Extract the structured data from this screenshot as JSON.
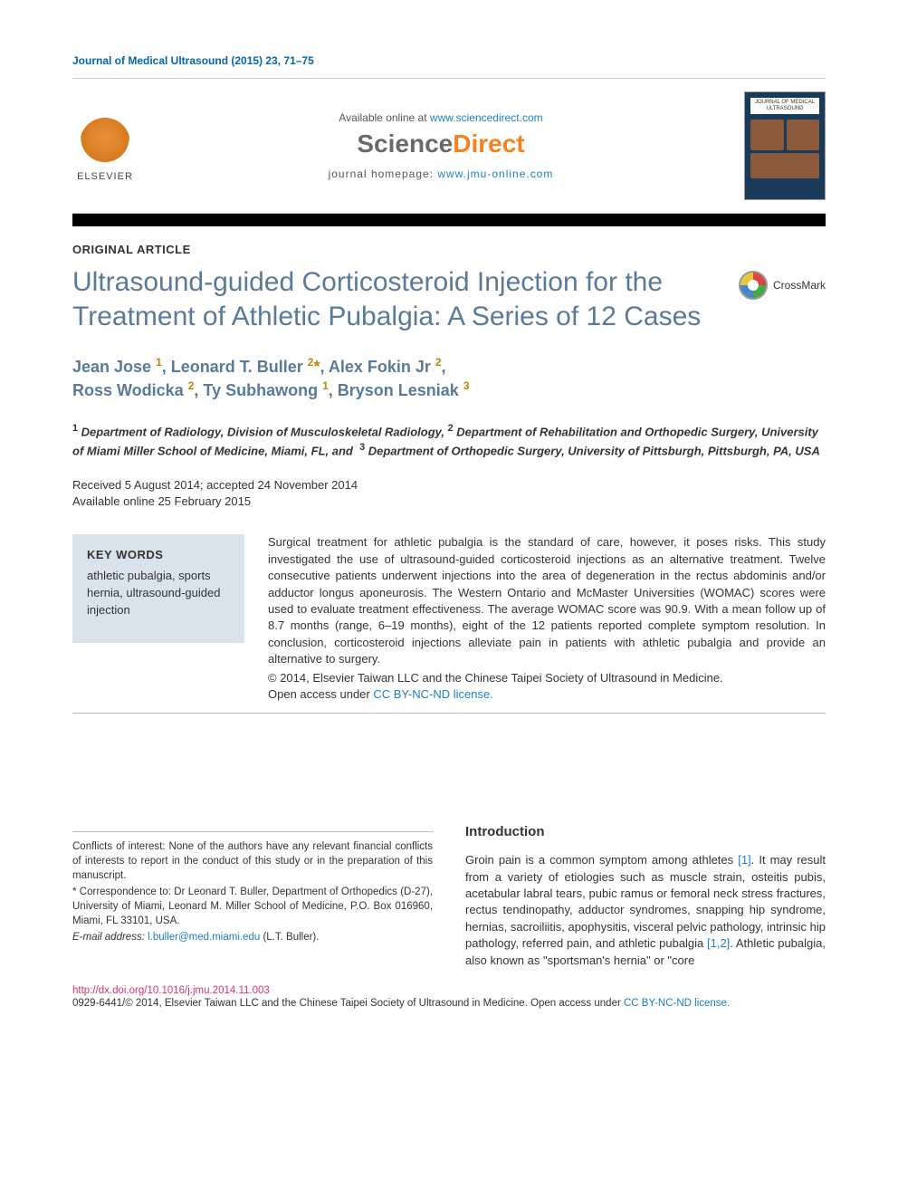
{
  "header": {
    "citation": "Journal of Medical Ultrasound (2015) 23, 71–75",
    "available_prefix": "Available online at ",
    "available_url": "www.sciencedirect.com",
    "sd_science": "Science",
    "sd_direct": "Direct",
    "homepage_prefix": "journal homepage: ",
    "homepage_url": "www.jmu-online.com",
    "elsevier_label": "ELSEVIER",
    "cover_title": "JOURNAL OF MEDICAL ULTRASOUND"
  },
  "article_type": "ORIGINAL ARTICLE",
  "title": "Ultrasound-guided Corticosteroid Injection for the Treatment of Athletic Pubalgia: A Series of 12 Cases",
  "crossmark": "CrossMark",
  "authors_html": "Jean Jose <sup>1</sup>, Leonard T. Buller <sup>2</sup><span class='corr'>*</span>, Alex Fokin Jr <sup>2</sup>,<br>Ross Wodicka <sup>2</sup>, Ty Subhawong <sup>1</sup>, Bryson Lesniak <sup>3</sup>",
  "affiliations": "<sup>1</sup> Department of Radiology, Division of Musculoskeletal Radiology, <sup>2</sup> Department of Rehabilitation and Orthopedic Surgery, University of Miami Miller School of Medicine, Miami, FL, and &nbsp;<sup>3</sup> Department of Orthopedic Surgery, University of Pittsburgh, Pittsburgh, PA, USA",
  "dates": {
    "received_accepted": "Received 5 August 2014; accepted 24 November 2014",
    "online": "Available online 25 February 2015"
  },
  "keywords": {
    "heading": "KEY WORDS",
    "body": "athletic pubalgia, sports hernia, ultrasound-guided injection"
  },
  "abstract": {
    "body": "Surgical treatment for athletic pubalgia is the standard of care, however, it poses risks. This study investigated the use of ultrasound-guided corticosteroid injections as an alternative treatment. Twelve consecutive patients underwent injections into the area of degeneration in the rectus abdominis and/or adductor longus aponeurosis. The Western Ontario and McMaster Universities (WOMAC) scores were used to evaluate treatment effectiveness. The average WOMAC score was 90.9. With a mean follow up of 8.7 months (range, 6–19 months), eight of the 12 patients reported complete symptom resolution. In conclusion, corticosteroid injections alleviate pain in patients with athletic pubalgia and provide an alternative to surgery.",
    "copyright": "© 2014, Elsevier Taiwan LLC and the Chinese Taipei Society of Ultrasound in Medicine.",
    "open_prefix": "Open access under ",
    "license_text": "CC BY-NC-ND license."
  },
  "intro": {
    "heading": "Introduction",
    "para": "Groin pain is a common symptom among athletes <a class='ref' href='#'>[1]</a>. It may result from a variety of etiologies such as muscle strain, osteitis pubis, acetabular labral tears, pubic ramus or femoral neck stress fractures, rectus tendinopathy, adductor syndromes, snapping hip syndrome, hernias, sacroiliitis, apophysitis, visceral pelvic pathology, intrinsic hip pathology, referred pain, and athletic pubalgia <a class='ref' href='#'>[1,2]</a>. Athletic pubalgia, also known as \"sportsman's hernia\" or \"core"
  },
  "footnotes": {
    "coi": "Conflicts of interest: None of the authors have any relevant financial conflicts of interests to report in the conduct of this study or in the preparation of this manuscript.",
    "corr": "* Correspondence to: Dr Leonard T. Buller, Department of Orthopedics (D-27), University of Miami, Leonard M. Miller School of Medicine, P.O. Box 016960, Miami, FL 33101, USA.",
    "email_label": "E-mail address: ",
    "email": "l.buller@med.miami.edu",
    "email_suffix": " (L.T. Buller)."
  },
  "footer": {
    "doi": "http://dx.doi.org/10.1016/j.jmu.2014.11.003",
    "perm_prefix": "0929-6441/© 2014, Elsevier Taiwan LLC and the Chinese Taipei Society of Ultrasound in Medicine. ",
    "open_prefix": "Open access under ",
    "license_text": "CC BY-NC-ND license."
  },
  "colors": {
    "link": "#1b80c4",
    "title": "#5a7a9a",
    "doi": "#d6336c",
    "orange": "#f58220",
    "keywords_bg": "#d9e3ec"
  }
}
